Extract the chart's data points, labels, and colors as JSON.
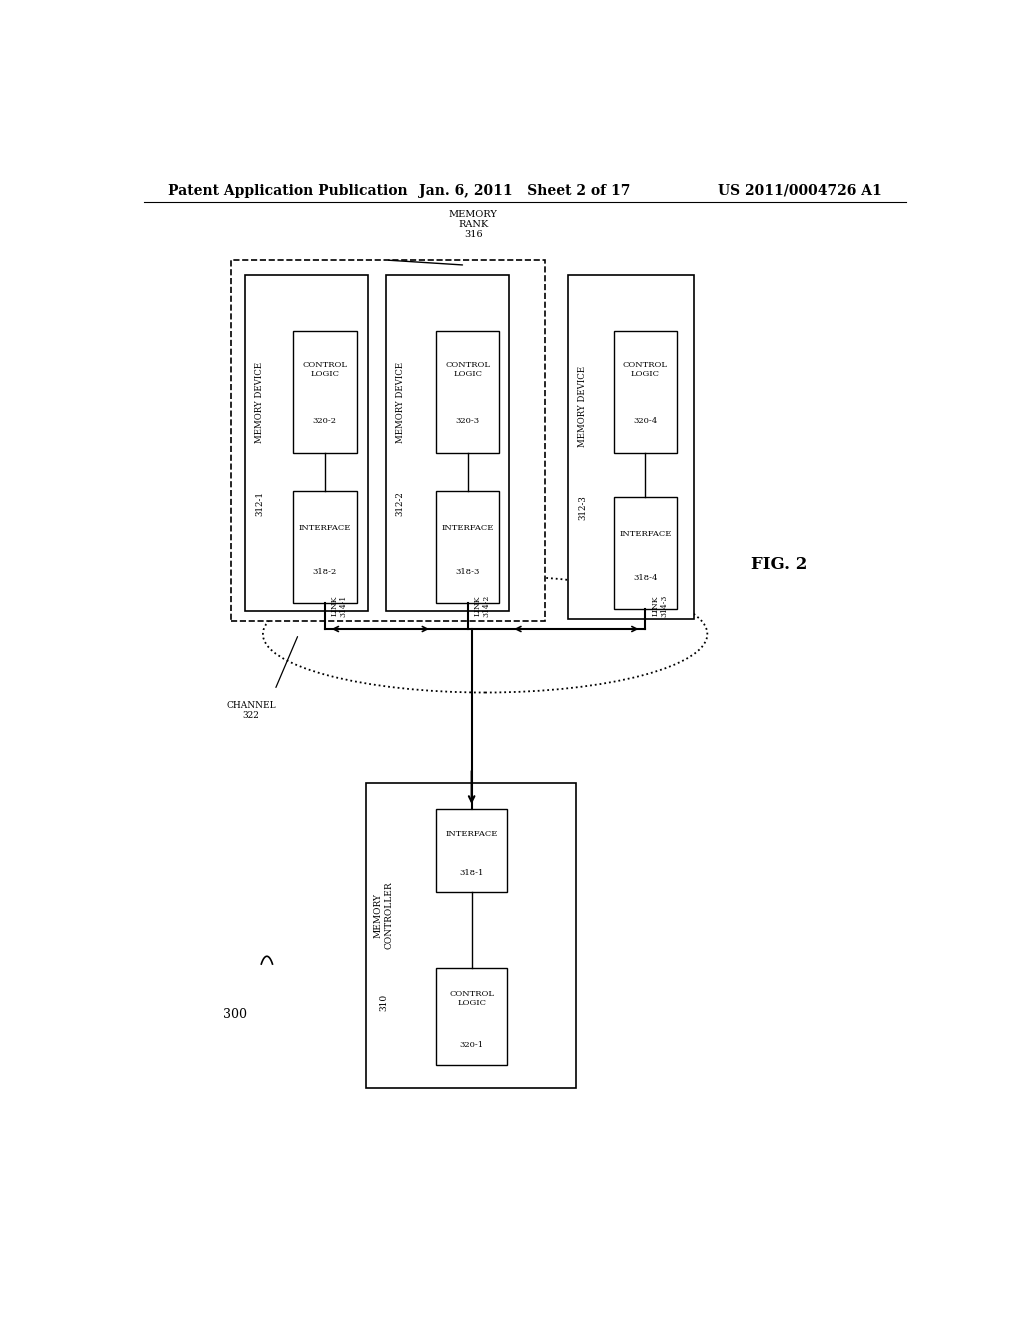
{
  "header_left": "Patent Application Publication",
  "header_center": "Jan. 6, 2011   Sheet 2 of 17",
  "header_right": "US 2011/0004726 A1",
  "fig_label": "FIG. 2",
  "diagram_ref": "300",
  "bg_color": "#ffffff",
  "line_color": "#000000"
}
